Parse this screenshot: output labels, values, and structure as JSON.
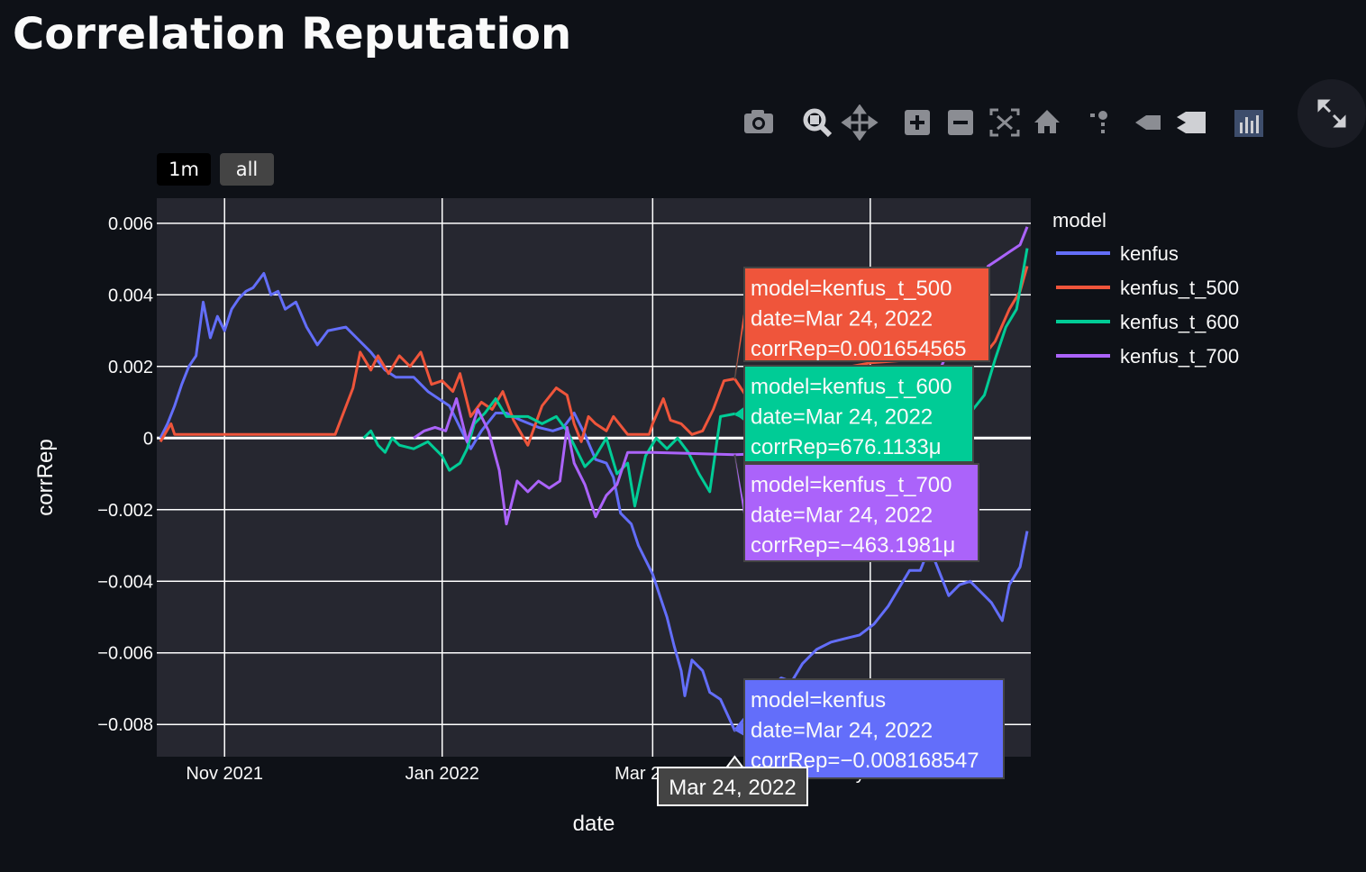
{
  "title": "Correlation Reputation",
  "range_buttons": [
    "1m",
    "all"
  ],
  "modebar_icons": [
    "camera-icon",
    "zoom-icon",
    "pan-icon",
    "zoom-in-icon",
    "zoom-out-icon",
    "autoscale-icon",
    "reset-axes-icon",
    "spike-lines-icon",
    "hover-closest-icon",
    "hover-compare-icon",
    "plotly-logo-icon",
    "fullscreen-icon"
  ],
  "colors": {
    "background": "#0e1117",
    "plot_bg": "#262730",
    "kenfus": "#636efa",
    "kenfus_t_500": "#ef553b",
    "kenfus_t_600": "#00cc96",
    "kenfus_t_700": "#ab63fa"
  },
  "chart_data": {
    "type": "line",
    "xlabel": "date",
    "ylabel": "corrRep",
    "x_ticks": [
      {
        "date": "2021-11-01",
        "label": "Nov 2021"
      },
      {
        "date": "2022-01-01",
        "label": "Jan 2022"
      },
      {
        "date": "2022-03-01",
        "label": "Mar 2022"
      },
      {
        "date": "2022-05-01",
        "label": "May 2022"
      }
    ],
    "y_ticks": [
      {
        "value": 0.006,
        "label": "0.006"
      },
      {
        "value": 0.004,
        "label": "0.004"
      },
      {
        "value": 0.002,
        "label": "0.002"
      },
      {
        "value": 0,
        "label": "0"
      },
      {
        "value": -0.002,
        "label": "−0.002"
      },
      {
        "value": -0.004,
        "label": "−0.004"
      },
      {
        "value": -0.006,
        "label": "−0.006"
      },
      {
        "value": -0.008,
        "label": "−0.008"
      }
    ],
    "xlim": [
      "2021-10-13",
      "2022-05-47"
    ],
    "ylim": [
      -0.0089,
      0.0067
    ],
    "legend_title": "model",
    "legend_position": "right",
    "series": [
      {
        "name": "kenfus",
        "points": [
          [
            "2021-10-14",
            0
          ],
          [
            "2021-10-16",
            0.0004
          ],
          [
            "2021-10-18",
            0.0009
          ],
          [
            "2021-10-20",
            0.0015
          ],
          [
            "2021-10-22",
            0.002
          ],
          [
            "2021-10-24",
            0.0023
          ],
          [
            "2021-10-26",
            0.0038
          ],
          [
            "2021-10-28",
            0.0028
          ],
          [
            "2021-10-30",
            0.0034
          ],
          [
            "2021-11-01",
            0.003
          ],
          [
            "2021-11-03",
            0.0036
          ],
          [
            "2021-11-05",
            0.0039
          ],
          [
            "2021-11-07",
            0.0041
          ],
          [
            "2021-11-09",
            0.0042
          ],
          [
            "2021-11-12",
            0.0046
          ],
          [
            "2021-11-14",
            0.004
          ],
          [
            "2021-11-16",
            0.0041
          ],
          [
            "2021-11-18",
            0.0036
          ],
          [
            "2021-11-21",
            0.0038
          ],
          [
            "2021-11-24",
            0.0031
          ],
          [
            "2021-11-27",
            0.0026
          ],
          [
            "2021-11-30",
            0.003
          ],
          [
            "2021-12-05",
            0.0031
          ],
          [
            "2021-12-09",
            0.0027
          ],
          [
            "2021-12-12",
            0.0024
          ],
          [
            "2021-12-16",
            0.0019
          ],
          [
            "2021-12-19",
            0.0017
          ],
          [
            "2021-12-24",
            0.0017
          ],
          [
            "2021-12-28",
            0.0013
          ],
          [
            "2021-12-31",
            0.0011
          ],
          [
            "2022-01-03",
            0.0009
          ],
          [
            "2022-01-06",
            0.0003
          ],
          [
            "2022-01-09",
            -0.0003
          ],
          [
            "2022-01-12",
            0.0002
          ],
          [
            "2022-01-16",
            0.0007
          ],
          [
            "2022-01-19",
            0.0007
          ],
          [
            "2022-01-23",
            0.0005
          ],
          [
            "2022-01-28",
            0.0003
          ],
          [
            "2022-02-01",
            0.0002
          ],
          [
            "2022-02-04",
            0.0003
          ],
          [
            "2022-02-07",
            0.0007
          ],
          [
            "2022-02-10",
            0.0001
          ],
          [
            "2022-02-13",
            -0.0006
          ],
          [
            "2022-02-16",
            -0.0007
          ],
          [
            "2022-02-18",
            -0.0011
          ],
          [
            "2022-02-20",
            -0.0021
          ],
          [
            "2022-02-23",
            -0.0024
          ],
          [
            "2022-02-25",
            -0.003
          ],
          [
            "2022-02-27",
            -0.0034
          ],
          [
            "2022-03-01",
            -0.0038
          ],
          [
            "2022-03-03",
            -0.0044
          ],
          [
            "2022-03-05",
            -0.005
          ],
          [
            "2022-03-07",
            -0.0058
          ],
          [
            "2022-03-09",
            -0.0065
          ],
          [
            "2022-03-10",
            -0.0072
          ],
          [
            "2022-03-12",
            -0.0062
          ],
          [
            "2022-03-15",
            -0.0065
          ],
          [
            "2022-03-17",
            -0.0071
          ],
          [
            "2022-03-20",
            -0.0073
          ],
          [
            "2022-03-24",
            -0.0081685
          ],
          [
            "2022-03-27",
            -0.0078
          ],
          [
            "2022-03-31",
            -0.0075
          ],
          [
            "2022-04-03",
            -0.007
          ],
          [
            "2022-04-06",
            -0.0067
          ],
          [
            "2022-04-09",
            -0.0068
          ],
          [
            "2022-04-12",
            -0.0063
          ],
          [
            "2022-04-16",
            -0.0059
          ],
          [
            "2022-04-20",
            -0.0057
          ],
          [
            "2022-04-24",
            -0.0056
          ],
          [
            "2022-04-28",
            -0.0055
          ],
          [
            "2022-05-02",
            -0.0052
          ],
          [
            "2022-05-06",
            -0.0047
          ],
          [
            "2022-05-09",
            -0.0042
          ],
          [
            "2022-05-12",
            -0.0037
          ],
          [
            "2022-05-15",
            -0.0037
          ],
          [
            "2022-05-17",
            -0.0032
          ],
          [
            "2022-05-19",
            -0.0034
          ],
          [
            "2022-05-21",
            -0.0039
          ],
          [
            "2022-05-23",
            -0.0044
          ],
          [
            "2022-05-26",
            -0.0041
          ],
          [
            "2022-05-29",
            -0.004
          ],
          [
            "2022-06-01",
            -0.0043
          ],
          [
            "2022-06-04",
            -0.0046
          ],
          [
            "2022-06-07",
            -0.0051
          ],
          [
            "2022-06-09",
            -0.0041
          ],
          [
            "2022-06-12",
            -0.0036
          ],
          [
            "2022-06-14",
            -0.0026
          ]
        ]
      },
      {
        "name": "kenfus_t_500",
        "points": [
          [
            "2021-10-14",
            -0.0001
          ],
          [
            "2021-10-17",
            0.0004
          ],
          [
            "2021-10-18",
            0.0001
          ],
          [
            "2021-12-02",
            0.0001
          ],
          [
            "2021-12-07",
            0.0014
          ],
          [
            "2021-12-09",
            0.0024
          ],
          [
            "2021-12-12",
            0.0019
          ],
          [
            "2021-12-14",
            0.0023
          ],
          [
            "2021-12-17",
            0.0018
          ],
          [
            "2021-12-20",
            0.0023
          ],
          [
            "2021-12-23",
            0.002
          ],
          [
            "2021-12-26",
            0.0024
          ],
          [
            "2021-12-29",
            0.0015
          ],
          [
            "2022-01-01",
            0.0016
          ],
          [
            "2022-01-04",
            0.0013
          ],
          [
            "2022-01-06",
            0.0018
          ],
          [
            "2022-01-09",
            0.0006
          ],
          [
            "2022-01-12",
            0.001
          ],
          [
            "2022-01-15",
            0.0008
          ],
          [
            "2022-01-18",
            0.0013
          ],
          [
            "2022-01-21",
            0.0005
          ],
          [
            "2022-01-25",
            -0.0002
          ],
          [
            "2022-01-29",
            0.0009
          ],
          [
            "2022-02-02",
            0.0014
          ],
          [
            "2022-02-05",
            0.0012
          ],
          [
            "2022-02-07",
            0.0004
          ],
          [
            "2022-02-09",
            -0.0001
          ],
          [
            "2022-02-11",
            0.0006
          ],
          [
            "2022-02-13",
            0.0004
          ],
          [
            "2022-02-16",
            0.0002
          ],
          [
            "2022-02-18",
            0.0006
          ],
          [
            "2022-02-22",
            0.0001
          ],
          [
            "2022-02-25",
            0.0001
          ],
          [
            "2022-02-28",
            0.0001
          ],
          [
            "2022-03-01",
            0.0004
          ],
          [
            "2022-03-04",
            0.0011
          ],
          [
            "2022-03-06",
            0.0005
          ],
          [
            "2022-03-09",
            0.0004
          ],
          [
            "2022-03-12",
            0.0001
          ],
          [
            "2022-03-15",
            0.0002
          ],
          [
            "2022-03-18",
            0.0008
          ],
          [
            "2022-03-21",
            0.0016
          ],
          [
            "2022-03-24",
            0.0016546
          ],
          [
            "2022-03-27",
            0.0012
          ],
          [
            "2022-04-02",
            0.0014
          ],
          [
            "2022-04-10",
            0.0016
          ],
          [
            "2022-04-20",
            0.0019
          ],
          [
            "2022-05-01",
            0.0021
          ],
          [
            "2022-05-15",
            0.0022
          ],
          [
            "2022-06-01",
            0.0022
          ],
          [
            "2022-06-05",
            0.0027
          ],
          [
            "2022-06-09",
            0.0036
          ],
          [
            "2022-06-12",
            0.0041
          ],
          [
            "2022-06-14",
            0.0048
          ]
        ]
      },
      {
        "name": "kenfus_t_600",
        "points": [
          [
            "2021-12-10",
            0
          ],
          [
            "2021-12-12",
            0.0002
          ],
          [
            "2021-12-14",
            -0.0002
          ],
          [
            "2021-12-16",
            -0.0004
          ],
          [
            "2021-12-18",
            0
          ],
          [
            "2021-12-20",
            -0.0002
          ],
          [
            "2021-12-24",
            -0.0003
          ],
          [
            "2021-12-28",
            -0.0001
          ],
          [
            "2022-01-01",
            -0.0005
          ],
          [
            "2022-01-03",
            -0.0009
          ],
          [
            "2022-01-06",
            -0.0007
          ],
          [
            "2022-01-08",
            -0.0003
          ],
          [
            "2022-01-10",
            0.0004
          ],
          [
            "2022-01-13",
            0.0007
          ],
          [
            "2022-01-16",
            0.0011
          ],
          [
            "2022-01-19",
            0.0006
          ],
          [
            "2022-01-22",
            0.0006
          ],
          [
            "2022-01-25",
            0.0006
          ],
          [
            "2022-01-29",
            0.0004
          ],
          [
            "2022-02-02",
            0.0006
          ],
          [
            "2022-02-05",
            0.0002
          ],
          [
            "2022-02-08",
            -0.0004
          ],
          [
            "2022-02-10",
            -0.0008
          ],
          [
            "2022-02-13",
            -0.0005
          ],
          [
            "2022-02-16",
            0
          ],
          [
            "2022-02-19",
            -0.001
          ],
          [
            "2022-02-22",
            -0.0007
          ],
          [
            "2022-02-24",
            -0.0019
          ],
          [
            "2022-02-27",
            -0.0005
          ],
          [
            "2022-03-02",
            0
          ],
          [
            "2022-03-05",
            -0.0003
          ],
          [
            "2022-03-08",
            0
          ],
          [
            "2022-03-11",
            -0.0004
          ],
          [
            "2022-03-14",
            -0.001
          ],
          [
            "2022-03-17",
            -0.0015
          ],
          [
            "2022-03-20",
            0.0006
          ],
          [
            "2022-03-24",
            0.00067611
          ],
          [
            "2022-03-28",
            0.0005
          ],
          [
            "2022-04-10",
            0.0003
          ],
          [
            "2022-04-25",
            0.0004
          ],
          [
            "2022-05-10",
            0.0003
          ],
          [
            "2022-05-25",
            0
          ],
          [
            "2022-05-29",
            0.0007
          ],
          [
            "2022-06-02",
            0.0012
          ],
          [
            "2022-06-05",
            0.0022
          ],
          [
            "2022-06-08",
            0.0031
          ],
          [
            "2022-06-11",
            0.0036
          ],
          [
            "2022-06-14",
            0.0053
          ]
        ]
      },
      {
        "name": "kenfus_t_700",
        "points": [
          [
            "2021-12-24",
            0
          ],
          [
            "2021-12-27",
            0.0002
          ],
          [
            "2021-12-30",
            0.0003
          ],
          [
            "2022-01-02",
            0.0002
          ],
          [
            "2022-01-05",
            0.0011
          ],
          [
            "2022-01-08",
            -0.0001
          ],
          [
            "2022-01-11",
            0.0008
          ],
          [
            "2022-01-14",
            0.0002
          ],
          [
            "2022-01-17",
            -0.0009
          ],
          [
            "2022-01-19",
            -0.0024
          ],
          [
            "2022-01-22",
            -0.0012
          ],
          [
            "2022-01-25",
            -0.0015
          ],
          [
            "2022-01-28",
            -0.0012
          ],
          [
            "2022-01-31",
            -0.0014
          ],
          [
            "2022-02-03",
            -0.0012
          ],
          [
            "2022-02-05",
            0.0003
          ],
          [
            "2022-02-07",
            -0.0007
          ],
          [
            "2022-02-10",
            -0.0013
          ],
          [
            "2022-02-13",
            -0.0022
          ],
          [
            "2022-02-16",
            -0.0016
          ],
          [
            "2022-02-19",
            -0.0013
          ],
          [
            "2022-02-22",
            -0.0004
          ],
          [
            "2022-03-01",
            -0.0004
          ],
          [
            "2022-03-24",
            -0.0004632
          ],
          [
            "2022-04-10",
            -0.0004
          ],
          [
            "2022-05-10",
            -0.0004
          ],
          [
            "2022-05-30",
            0.004
          ],
          [
            "2022-06-01",
            0.0043
          ],
          [
            "2022-06-03",
            0.0048
          ],
          [
            "2022-06-06",
            0.005
          ],
          [
            "2022-06-09",
            0.0052
          ],
          [
            "2022-06-12",
            0.0054
          ],
          [
            "2022-06-14",
            0.0059
          ]
        ]
      }
    ],
    "hover": {
      "x_label": "Mar 24, 2022",
      "labels": [
        {
          "series": "kenfus_t_500",
          "lines": [
            "model=kenfus_t_500",
            "date=Mar 24, 2022",
            "corrRep=0.001654565"
          ]
        },
        {
          "series": "kenfus_t_600",
          "lines": [
            "model=kenfus_t_600",
            "date=Mar 24, 2022",
            "corrRep=676.1133μ"
          ]
        },
        {
          "series": "kenfus_t_700",
          "lines": [
            "model=kenfus_t_700",
            "date=Mar 24, 2022",
            "corrRep=−463.1981μ"
          ]
        },
        {
          "series": "kenfus",
          "lines": [
            "model=kenfus",
            "date=Mar 24, 2022",
            "corrRep=−0.008168547"
          ]
        }
      ]
    }
  }
}
